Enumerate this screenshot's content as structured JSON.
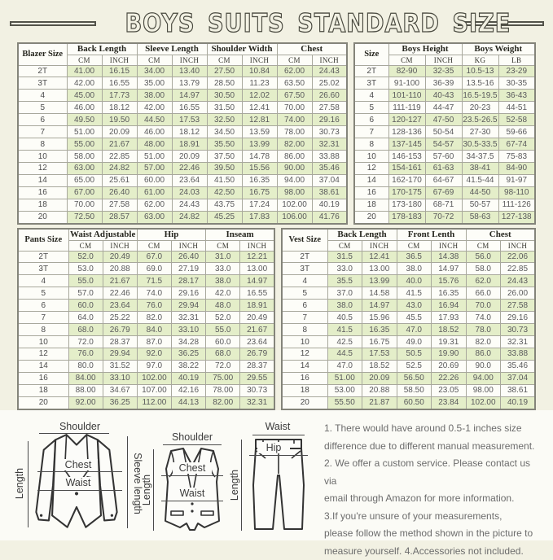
{
  "title": "BOYS SUITS STANDARD SIZE",
  "colors": {
    "page_bg": "#f2f1e3",
    "row_green": "#e4eec9",
    "cell_white": "#fdfdf8",
    "border": "#a8a89c"
  },
  "tables": {
    "blazer": {
      "corner": "Blazer Size",
      "groups": [
        {
          "label": "Back Length",
          "sub": [
            "CM",
            "INCH"
          ]
        },
        {
          "label": "Sleeve Length",
          "sub": [
            "CM",
            "INCH"
          ]
        },
        {
          "label": "Shoulder Width",
          "sub": [
            "CM",
            "INCH"
          ]
        },
        {
          "label": "Chest",
          "sub": [
            "CM",
            "INCH"
          ]
        }
      ],
      "rows": [
        [
          "2T",
          "41.00",
          "16.15",
          "34.00",
          "13.40",
          "27.50",
          "10.84",
          "62.00",
          "24.43"
        ],
        [
          "3T",
          "42.00",
          "16.55",
          "35.00",
          "13.79",
          "28.50",
          "11.23",
          "63.50",
          "25.02"
        ],
        [
          "4",
          "45.00",
          "17.73",
          "38.00",
          "14.97",
          "30.50",
          "12.02",
          "67.50",
          "26.60"
        ],
        [
          "5",
          "46.00",
          "18.12",
          "42.00",
          "16.55",
          "31.50",
          "12.41",
          "70.00",
          "27.58"
        ],
        [
          "6",
          "49.50",
          "19.50",
          "44.50",
          "17.53",
          "32.50",
          "12.81",
          "74.00",
          "29.16"
        ],
        [
          "7",
          "51.00",
          "20.09",
          "46.00",
          "18.12",
          "34.50",
          "13.59",
          "78.00",
          "30.73"
        ],
        [
          "8",
          "55.00",
          "21.67",
          "48.00",
          "18.91",
          "35.50",
          "13.99",
          "82.00",
          "32.31"
        ],
        [
          "10",
          "58.00",
          "22.85",
          "51.00",
          "20.09",
          "37.50",
          "14.78",
          "86.00",
          "33.88"
        ],
        [
          "12",
          "63.00",
          "24.82",
          "57.00",
          "22.46",
          "39.50",
          "15.56",
          "90.00",
          "35.46"
        ],
        [
          "14",
          "65.00",
          "25.61",
          "60.00",
          "23.64",
          "41.50",
          "16.35",
          "94.00",
          "37.04"
        ],
        [
          "16",
          "67.00",
          "26.40",
          "61.00",
          "24.03",
          "42.50",
          "16.75",
          "98.00",
          "38.61"
        ],
        [
          "18",
          "70.00",
          "27.58",
          "62.00",
          "24.43",
          "43.75",
          "17.24",
          "102.00",
          "40.19"
        ],
        [
          "20",
          "72.50",
          "28.57",
          "63.00",
          "24.82",
          "45.25",
          "17.83",
          "106.00",
          "41.76"
        ]
      ]
    },
    "height_weight": {
      "corner": "Size",
      "groups": [
        {
          "label": "Boys Height",
          "sub": [
            "CM",
            "INCH"
          ]
        },
        {
          "label": "Boys Weight",
          "sub": [
            "KG",
            "LB"
          ]
        }
      ],
      "rows": [
        [
          "2T",
          "82-90",
          "32-35",
          "10.5-13",
          "23-29"
        ],
        [
          "3T",
          "91-100",
          "36-39",
          "13.5-16",
          "30-35"
        ],
        [
          "4",
          "101-110",
          "40-43",
          "16.5-19.5",
          "36-43"
        ],
        [
          "5",
          "111-119",
          "44-47",
          "20-23",
          "44-51"
        ],
        [
          "6",
          "120-127",
          "47-50",
          "23.5-26.5",
          "52-58"
        ],
        [
          "7",
          "128-136",
          "50-54",
          "27-30",
          "59-66"
        ],
        [
          "8",
          "137-145",
          "54-57",
          "30.5-33.5",
          "67-74"
        ],
        [
          "10",
          "146-153",
          "57-60",
          "34-37.5",
          "75-83"
        ],
        [
          "12",
          "154-161",
          "61-63",
          "38-41",
          "84-90"
        ],
        [
          "14",
          "162-170",
          "64-67",
          "41.5-44",
          "91-97"
        ],
        [
          "16",
          "170-175",
          "67-69",
          "44-50",
          "98-110"
        ],
        [
          "18",
          "173-180",
          "68-71",
          "50-57",
          "111-126"
        ],
        [
          "20",
          "178-183",
          "70-72",
          "58-63",
          "127-138"
        ]
      ]
    },
    "pants": {
      "corner": "Pants Size",
      "groups": [
        {
          "label": "Waist Adjustable",
          "sub": [
            "CM",
            "INCH"
          ]
        },
        {
          "label": "Hip",
          "sub": [
            "CM",
            "INCH"
          ]
        },
        {
          "label": "Inseam",
          "sub": [
            "CM",
            "INCH"
          ]
        }
      ],
      "rows": [
        [
          "2T",
          "52.0",
          "20.49",
          "67.0",
          "26.40",
          "31.0",
          "12.21"
        ],
        [
          "3T",
          "53.0",
          "20.88",
          "69.0",
          "27.19",
          "33.0",
          "13.00"
        ],
        [
          "4",
          "55.0",
          "21.67",
          "71.5",
          "28.17",
          "38.0",
          "14.97"
        ],
        [
          "5",
          "57.0",
          "22.46",
          "74.0",
          "29.16",
          "42.0",
          "16.55"
        ],
        [
          "6",
          "60.0",
          "23.64",
          "76.0",
          "29.94",
          "48.0",
          "18.91"
        ],
        [
          "7",
          "64.0",
          "25.22",
          "82.0",
          "32.31",
          "52.0",
          "20.49"
        ],
        [
          "8",
          "68.0",
          "26.79",
          "84.0",
          "33.10",
          "55.0",
          "21.67"
        ],
        [
          "10",
          "72.0",
          "28.37",
          "87.0",
          "34.28",
          "60.0",
          "23.64"
        ],
        [
          "12",
          "76.0",
          "29.94",
          "92.0",
          "36.25",
          "68.0",
          "26.79"
        ],
        [
          "14",
          "80.0",
          "31.52",
          "97.0",
          "38.22",
          "72.0",
          "28.37"
        ],
        [
          "16",
          "84.00",
          "33.10",
          "102.00",
          "40.19",
          "75.00",
          "29.55"
        ],
        [
          "18",
          "88.00",
          "34.67",
          "107.00",
          "42.16",
          "78.00",
          "30.73"
        ],
        [
          "20",
          "92.00",
          "36.25",
          "112.00",
          "44.13",
          "82.00",
          "32.31"
        ]
      ]
    },
    "vest": {
      "corner": "Vest Size",
      "groups": [
        {
          "label": "Back Length",
          "sub": [
            "CM",
            "INCH"
          ]
        },
        {
          "label": "Front Lenth",
          "sub": [
            "CM",
            "INCH"
          ]
        },
        {
          "label": "Chest",
          "sub": [
            "CM",
            "INCH"
          ]
        }
      ],
      "rows": [
        [
          "2T",
          "31.5",
          "12.41",
          "36.5",
          "14.38",
          "56.0",
          "22.06"
        ],
        [
          "3T",
          "33.0",
          "13.00",
          "38.0",
          "14.97",
          "58.0",
          "22.85"
        ],
        [
          "4",
          "35.5",
          "13.99",
          "40.0",
          "15.76",
          "62.0",
          "24.43"
        ],
        [
          "5",
          "37.0",
          "14.58",
          "41.5",
          "16.35",
          "66.0",
          "26.00"
        ],
        [
          "6",
          "38.0",
          "14.97",
          "43.0",
          "16.94",
          "70.0",
          "27.58"
        ],
        [
          "7",
          "40.5",
          "15.96",
          "45.5",
          "17.93",
          "74.0",
          "29.16"
        ],
        [
          "8",
          "41.5",
          "16.35",
          "47.0",
          "18.52",
          "78.0",
          "30.73"
        ],
        [
          "10",
          "42.5",
          "16.75",
          "49.0",
          "19.31",
          "82.0",
          "32.31"
        ],
        [
          "12",
          "44.5",
          "17.53",
          "50.5",
          "19.90",
          "86.0",
          "33.88"
        ],
        [
          "14",
          "47.0",
          "18.52",
          "52.5",
          "20.69",
          "90.0",
          "35.46"
        ],
        [
          "16",
          "51.00",
          "20.09",
          "56.50",
          "22.26",
          "94.00",
          "37.04"
        ],
        [
          "18",
          "53.00",
          "20.88",
          "58.50",
          "23.05",
          "98.00",
          "38.61"
        ],
        [
          "20",
          "55.50",
          "21.87",
          "60.50",
          "23.84",
          "102.00",
          "40.19"
        ]
      ]
    }
  },
  "diagrams": {
    "jacket": {
      "shoulder": "Shoulder",
      "length": "Length",
      "sleeve_length": "Sleeve length",
      "chest": "Chest",
      "waist": "Waist"
    },
    "vest": {
      "shoulder": "Shoulder",
      "length": "Length",
      "chest": "Chest",
      "waist": "Waist"
    },
    "pants": {
      "waist": "Waist",
      "hip": "Hip",
      "length": "Length"
    }
  },
  "notes": {
    "text": "1. There would have around 0.5-1 inches size\ndifference due to different manual measurement.\n2. We offer a custom service. Please contact us via\nemail through Amazon for more information.\n3.If you're unsure of your measurements,\nplease follow the method shown in the picture to\nmeasure yourself. 4.Accessories not included."
  }
}
